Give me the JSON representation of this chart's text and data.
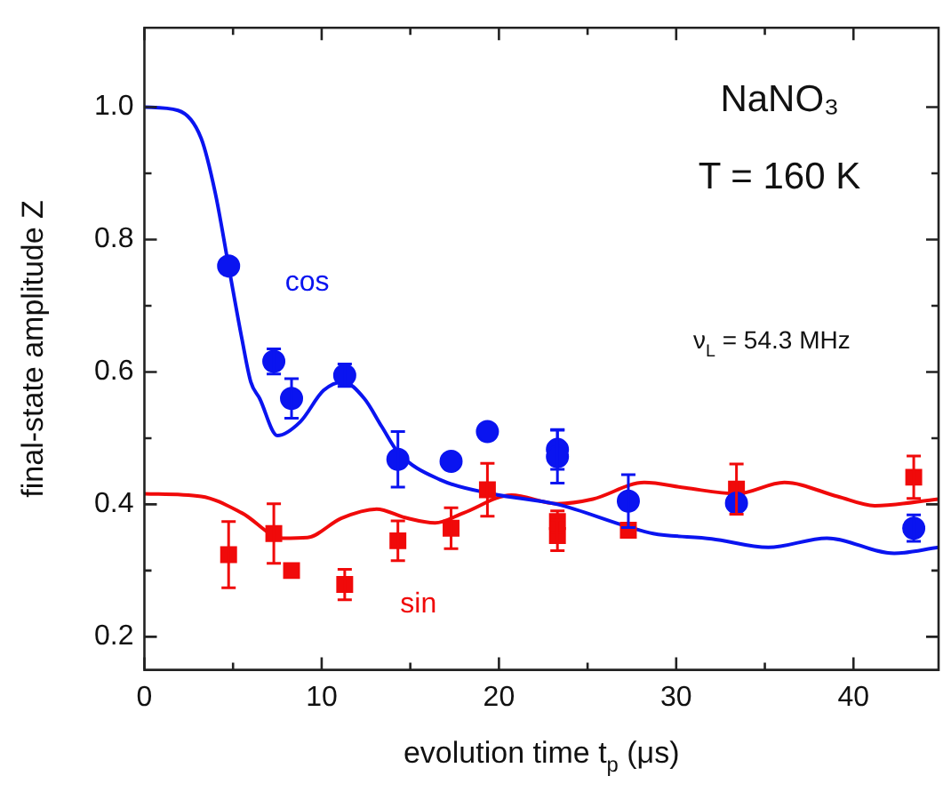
{
  "chart_data": {
    "type": "scatter",
    "xlabel": "evolution time t$_{p}$ (μs)",
    "ylabel": "final-state amplitude Z",
    "xlim": [
      0,
      44.8
    ],
    "ylim": [
      0.15,
      1.12
    ],
    "xticks": [
      0,
      {
        "value": 5,
        "label": null
      },
      10,
      {
        "value": 15,
        "label": null
      },
      20,
      {
        "value": 25,
        "label": null
      },
      30,
      {
        "value": 35,
        "label": null
      },
      40
    ],
    "yticks": [
      {
        "value": 0.2,
        "label": "0.2"
      },
      {
        "value": 0.3,
        "label": null
      },
      {
        "value": 0.4,
        "label": "0.4"
      },
      {
        "value": 0.5,
        "label": null
      },
      {
        "value": 0.6,
        "label": "0.6"
      },
      {
        "value": 0.7,
        "label": null
      },
      {
        "value": 0.8,
        "label": "0.8"
      },
      {
        "value": 0.9,
        "label": null
      },
      {
        "value": 1.0,
        "label": "1.0"
      }
    ],
    "grid": false,
    "annotations": [
      "NaNO₃",
      "T = 160 K",
      "ν$_{L}$ = 54.3 MHz"
    ],
    "series": [
      {
        "name": "cos",
        "type": "scatter",
        "marker": "circle",
        "color": "#0a14f0",
        "x": [
          4.75,
          7.3,
          8.3,
          11.3,
          14.3,
          17.3,
          19.35,
          23.3,
          23.3,
          27.3,
          33.4,
          43.4
        ],
        "values": [
          0.76,
          0.616,
          0.56,
          0.595,
          0.468,
          0.465,
          0.51,
          0.483,
          0.472,
          0.405,
          0.402,
          0.364
        ],
        "errors": [
          null,
          0.019,
          0.03,
          0.017,
          0.042,
          null,
          null,
          0.03,
          0.04,
          0.04,
          null,
          0.02
        ]
      },
      {
        "name": "sin",
        "type": "scatter",
        "marker": "square",
        "color": "#f00a0a",
        "x": [
          4.75,
          7.3,
          8.3,
          11.3,
          14.3,
          17.3,
          19.35,
          23.3,
          23.3,
          27.3,
          33.4,
          43.4
        ],
        "values": [
          0.324,
          0.356,
          0.3,
          0.279,
          0.345,
          0.364,
          0.422,
          0.374,
          0.353,
          0.361,
          0.423,
          0.441
        ],
        "errors": [
          0.05,
          0.045,
          null,
          0.023,
          0.03,
          0.031,
          0.04,
          0.016,
          0.023,
          null,
          0.038,
          0.032
        ]
      },
      {
        "type": "line",
        "marker": "none",
        "color": "#0a14f0",
        "x": [
          0,
          1.9,
          3.2,
          4.0,
          4.75,
          5.5,
          6.0,
          6.5,
          7.5,
          8.8,
          10.1,
          11.2,
          12.4,
          13.4,
          14.3,
          16.7,
          19.6,
          23.3,
          27.3,
          28.7,
          32,
          35.2,
          38.5,
          42.3,
          44.8
        ],
        "values": [
          1.0,
          0.995,
          0.953,
          0.87,
          0.76,
          0.65,
          0.585,
          0.56,
          0.504,
          0.525,
          0.572,
          0.585,
          0.56,
          0.517,
          0.479,
          0.437,
          0.416,
          0.4,
          0.366,
          0.356,
          0.348,
          0.335,
          0.349,
          0.326,
          0.335
        ]
      },
      {
        "type": "line",
        "marker": "none",
        "color": "#f00a0a",
        "x": [
          0,
          3.2,
          5.5,
          7.8,
          9.2,
          11.1,
          13.1,
          14.7,
          16.4,
          18,
          20.7,
          23.3,
          25.3,
          28.2,
          30.5,
          33.4,
          36.1,
          39.1,
          41.2,
          44.8
        ],
        "values": [
          0.416,
          0.412,
          0.387,
          0.349,
          0.35,
          0.379,
          0.393,
          0.38,
          0.372,
          0.387,
          0.414,
          0.401,
          0.408,
          0.433,
          0.425,
          0.416,
          0.433,
          0.412,
          0.398,
          0.408
        ]
      }
    ]
  }
}
